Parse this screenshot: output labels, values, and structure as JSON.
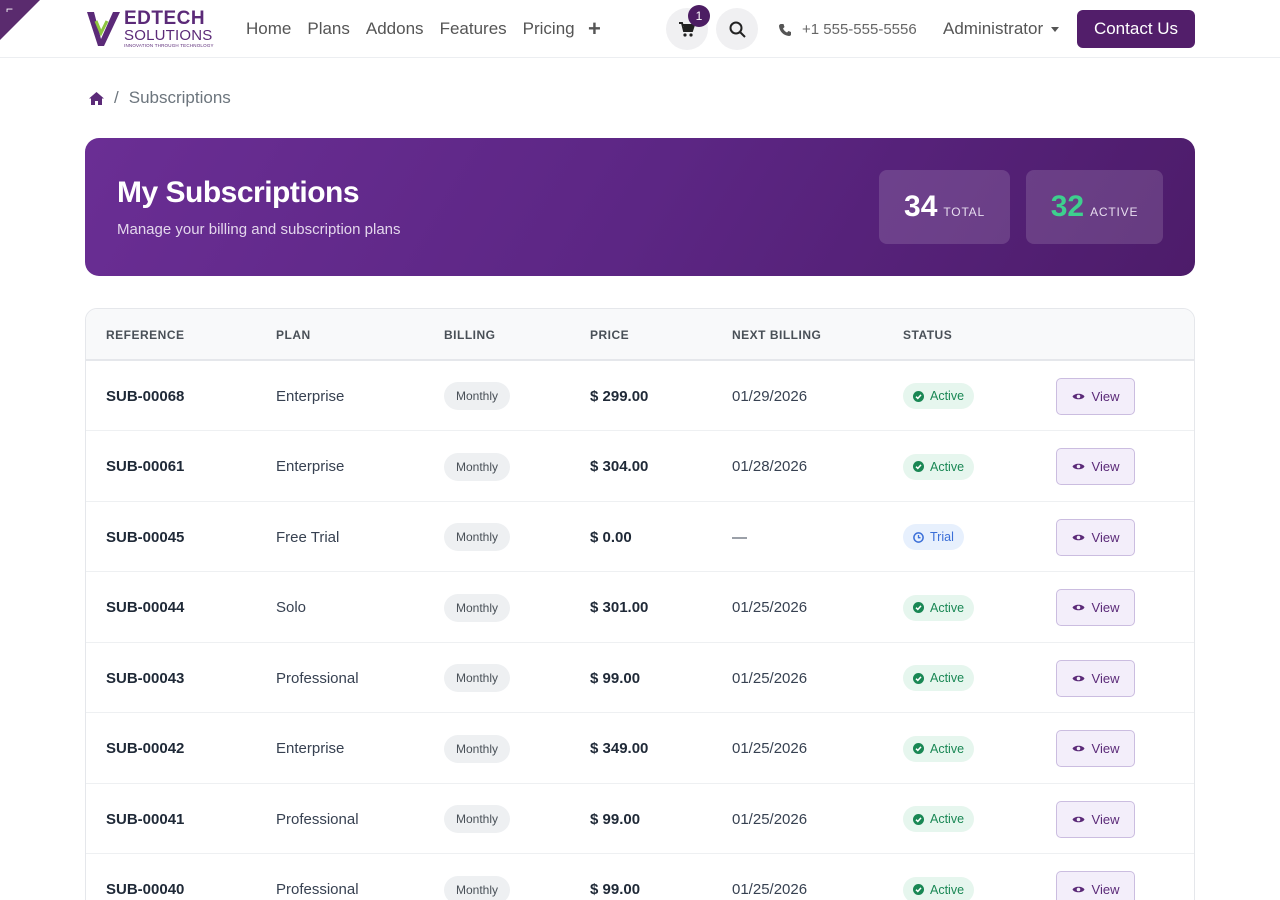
{
  "nav": {
    "logo": {
      "line1": "EDTECH",
      "line2": "SOLUTIONS",
      "line3": "INNOVATION THROUGH TECHNOLOGY"
    },
    "links": [
      "Home",
      "Plans",
      "Addons",
      "Features",
      "Pricing"
    ],
    "plus": "+",
    "cart_count": "1",
    "phone": "+1 555-555-5556",
    "user": "Administrator",
    "contact_label": "Contact Us"
  },
  "breadcrumb": {
    "current": "Subscriptions"
  },
  "hero": {
    "title": "My Subscriptions",
    "subtitle": "Manage your billing and subscription plans",
    "total_value": "34",
    "total_label": "TOTAL",
    "active_value": "32",
    "active_label": "ACTIVE"
  },
  "table": {
    "headers": [
      "REFERENCE",
      "PLAN",
      "BILLING",
      "PRICE",
      "NEXT BILLING",
      "STATUS"
    ],
    "view_label": "View",
    "rows": [
      {
        "ref": "SUB-00068",
        "plan": "Enterprise",
        "billing": "Monthly",
        "price": "$ 299.00",
        "next": "01/29/2026",
        "status": "Active"
      },
      {
        "ref": "SUB-00061",
        "plan": "Enterprise",
        "billing": "Monthly",
        "price": "$ 304.00",
        "next": "01/28/2026",
        "status": "Active"
      },
      {
        "ref": "SUB-00045",
        "plan": "Free Trial",
        "billing": "Monthly",
        "price": "$ 0.00",
        "next": "—",
        "status": "Trial"
      },
      {
        "ref": "SUB-00044",
        "plan": "Solo",
        "billing": "Monthly",
        "price": "$ 301.00",
        "next": "01/25/2026",
        "status": "Active"
      },
      {
        "ref": "SUB-00043",
        "plan": "Professional",
        "billing": "Monthly",
        "price": "$ 99.00",
        "next": "01/25/2026",
        "status": "Active"
      },
      {
        "ref": "SUB-00042",
        "plan": "Enterprise",
        "billing": "Monthly",
        "price": "$ 349.00",
        "next": "01/25/2026",
        "status": "Active"
      },
      {
        "ref": "SUB-00041",
        "plan": "Professional",
        "billing": "Monthly",
        "price": "$ 99.00",
        "next": "01/25/2026",
        "status": "Active"
      },
      {
        "ref": "SUB-00040",
        "plan": "Professional",
        "billing": "Monthly",
        "price": "$ 99.00",
        "next": "01/25/2026",
        "status": "Active"
      }
    ]
  },
  "colors": {
    "brand": "#521e6a",
    "active_total": "#3ecf8e",
    "status_active": "#198754",
    "status_trial": "#3b6fd8"
  }
}
